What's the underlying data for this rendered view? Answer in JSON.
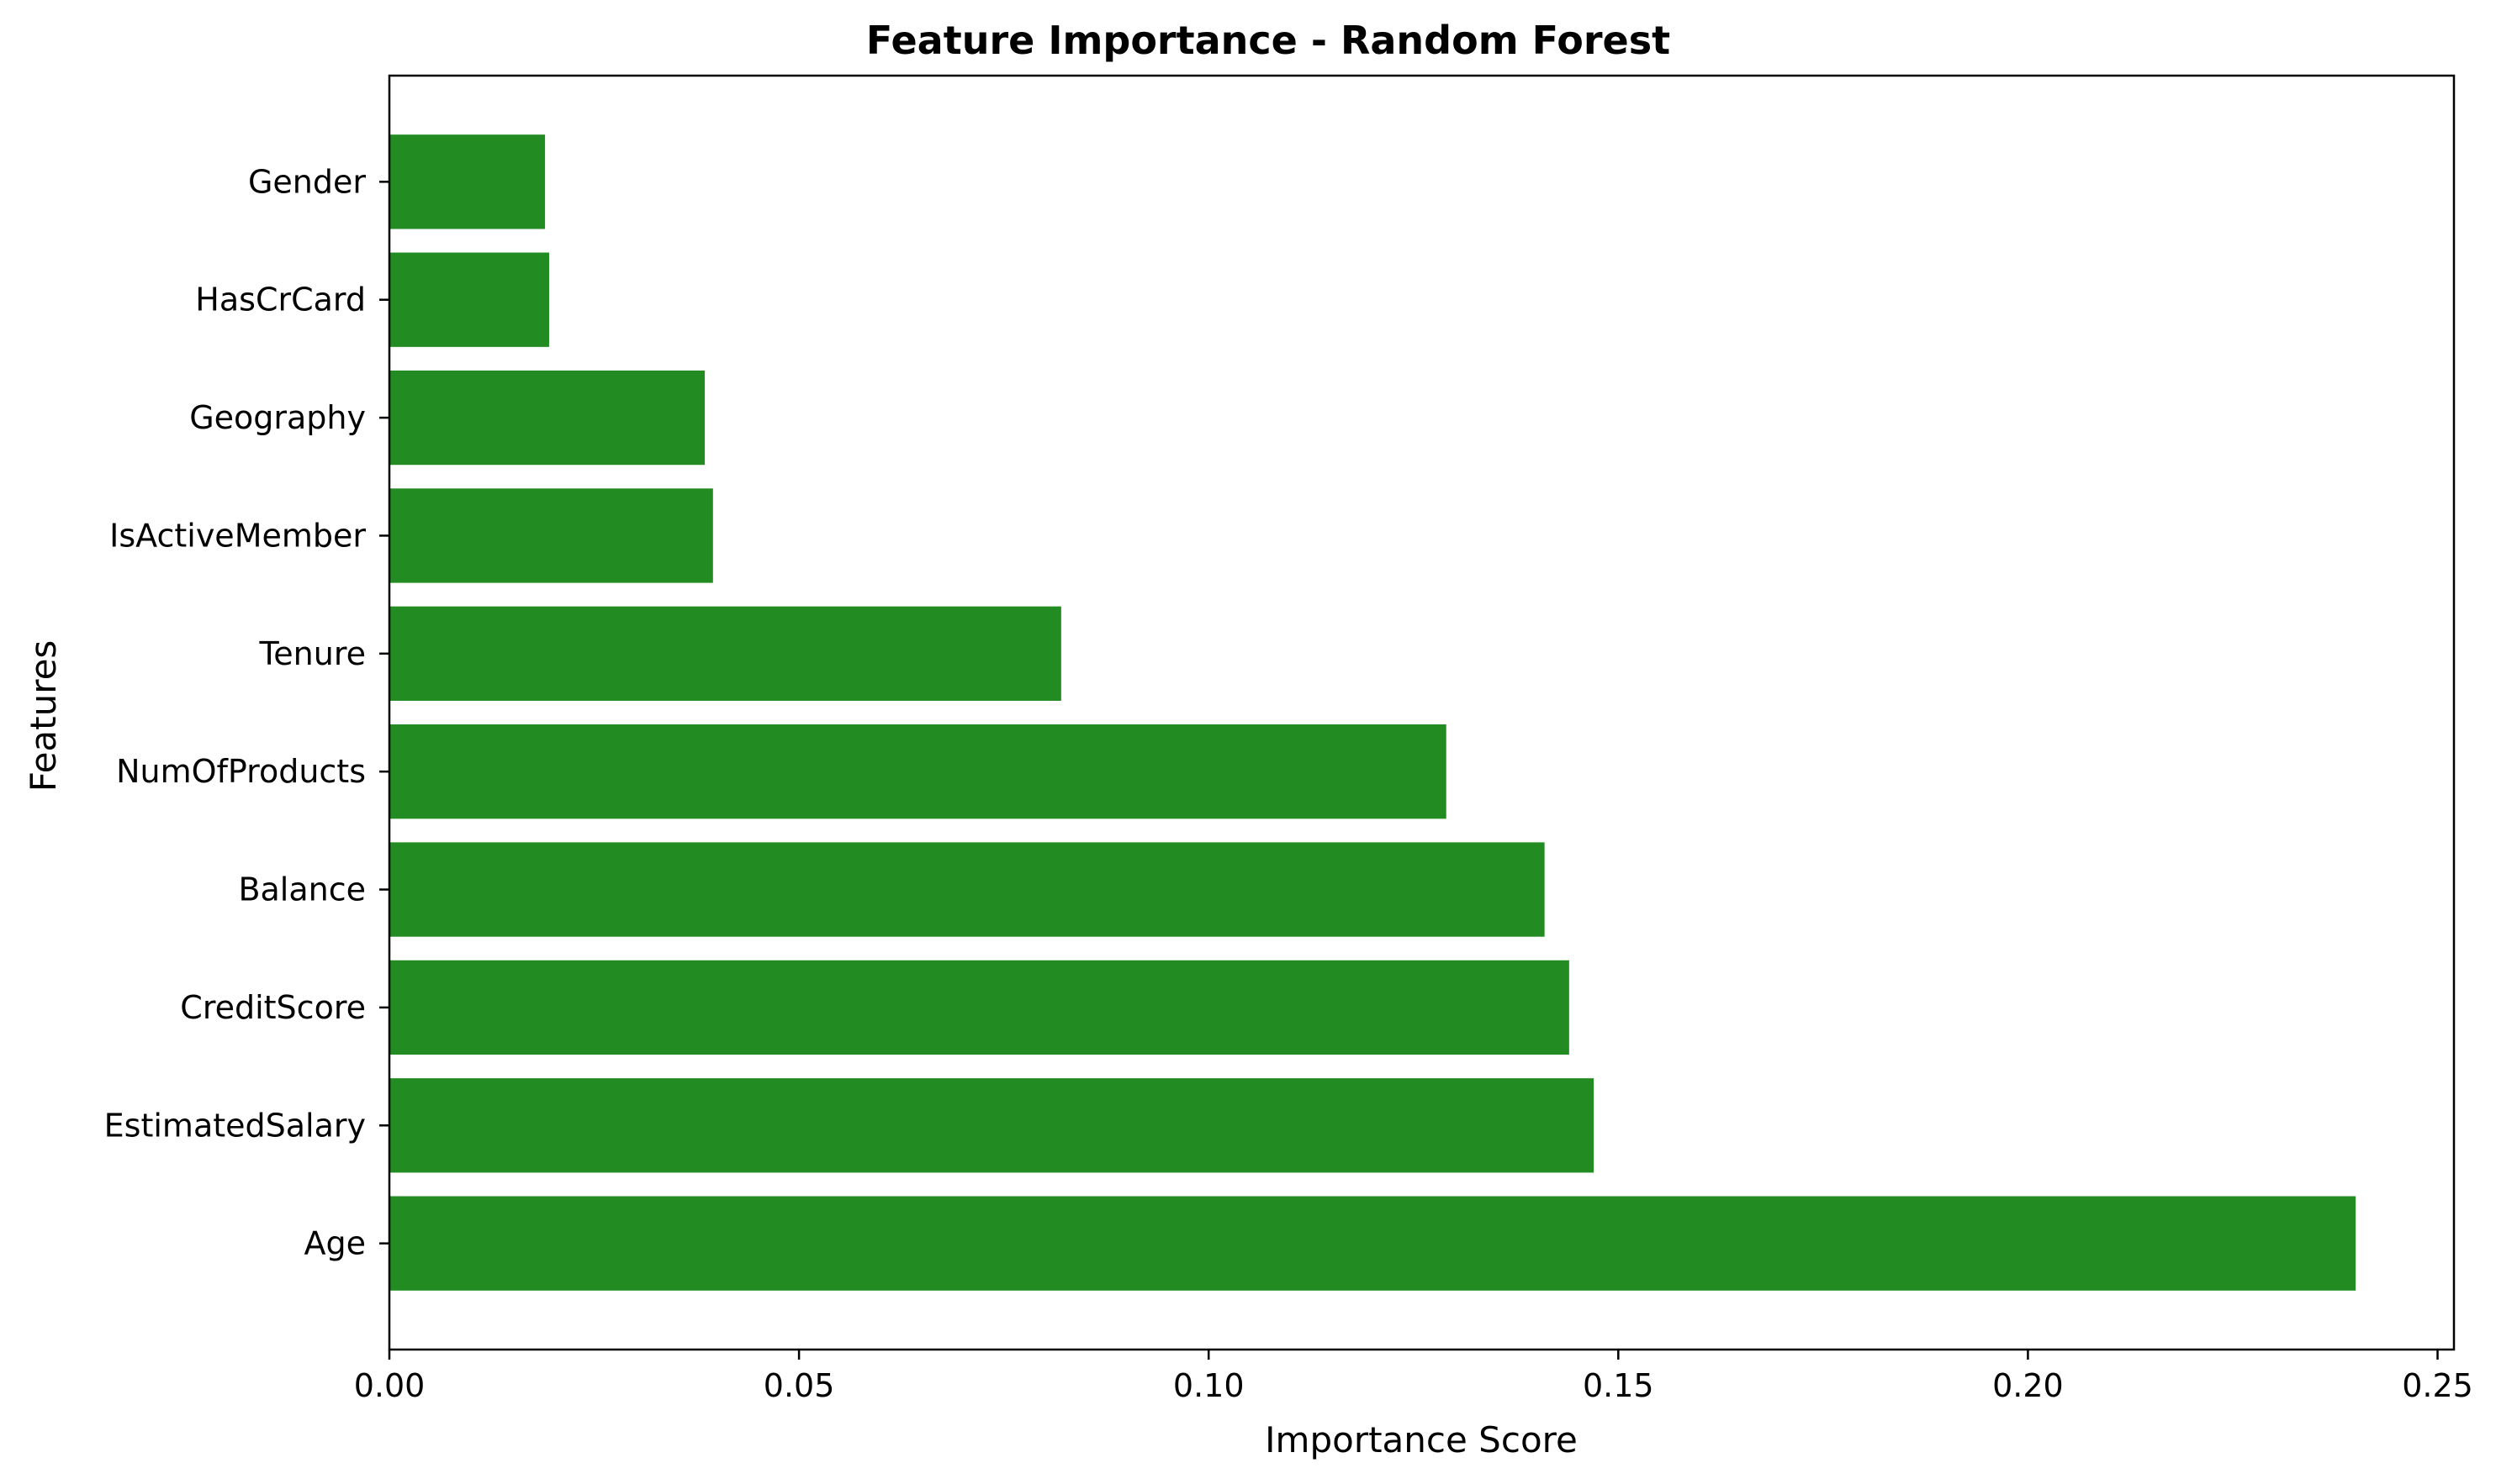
{
  "chart_data": {
    "type": "bar",
    "orientation": "horizontal",
    "title": "Feature Importance - Random Forest",
    "xlabel": "Importance Score",
    "ylabel": "Features",
    "categories": [
      "Age",
      "EstimatedSalary",
      "CreditScore",
      "Balance",
      "NumOfProducts",
      "Tenure",
      "IsActiveMember",
      "Geography",
      "HasCrCard",
      "Gender"
    ],
    "values": [
      0.24,
      0.147,
      0.144,
      0.141,
      0.129,
      0.082,
      0.0395,
      0.0385,
      0.0195,
      0.019
    ],
    "xlim": [
      0.0,
      0.252
    ],
    "xticks": [
      0.0,
      0.05,
      0.1,
      0.15,
      0.2,
      0.25
    ],
    "xtick_labels": [
      "0.00",
      "0.05",
      "0.10",
      "0.15",
      "0.20",
      "0.25"
    ],
    "bar_color": "#228b22",
    "grid": false,
    "legend": "none"
  }
}
